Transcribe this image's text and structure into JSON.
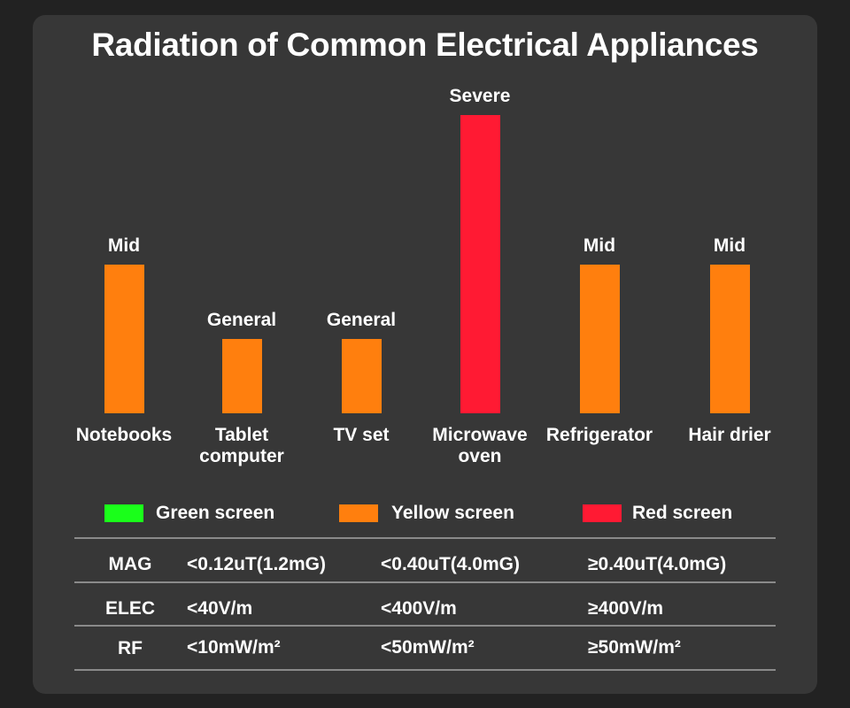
{
  "title": "Radiation of Common Electrical Appliances",
  "chart_data": {
    "type": "bar",
    "title": "Radiation of Common Electrical Appliances",
    "categories": [
      "Notebooks",
      "Tablet\ncomputer",
      "TV set",
      "Microwave\noven",
      "Refrigerator",
      "Hair drier"
    ],
    "values": [
      2,
      1,
      1,
      4,
      2,
      2
    ],
    "value_labels": [
      "Mid",
      "General",
      "General",
      "Severe",
      "Mid",
      "Mid"
    ],
    "bar_colors": [
      "#ff7f0e",
      "#ff7f0e",
      "#ff7f0e",
      "#ff1a33",
      "#ff7f0e",
      "#ff7f0e"
    ],
    "ylim": [
      0,
      4
    ],
    "grid": false,
    "xlabel": "",
    "ylabel": ""
  },
  "legend": [
    {
      "label": "Green screen",
      "color": "#1aff1a"
    },
    {
      "label": "Yellow screen",
      "color": "#ff7f0e"
    },
    {
      "label": "Red screen",
      "color": "#ff1a33"
    }
  ],
  "table": {
    "rows": [
      {
        "head": "MAG",
        "cells": [
          "<0.12uT(1.2mG)",
          "<0.40uT(4.0mG)",
          "≥0.40uT(4.0mG)"
        ]
      },
      {
        "head": "ELEC",
        "cells": [
          "<40V/m",
          "<400V/m",
          "≥400V/m"
        ]
      },
      {
        "head": "RF",
        "cells": [
          "<10mW/m²",
          "<50mW/m²",
          "≥50mW/m²"
        ]
      }
    ]
  }
}
